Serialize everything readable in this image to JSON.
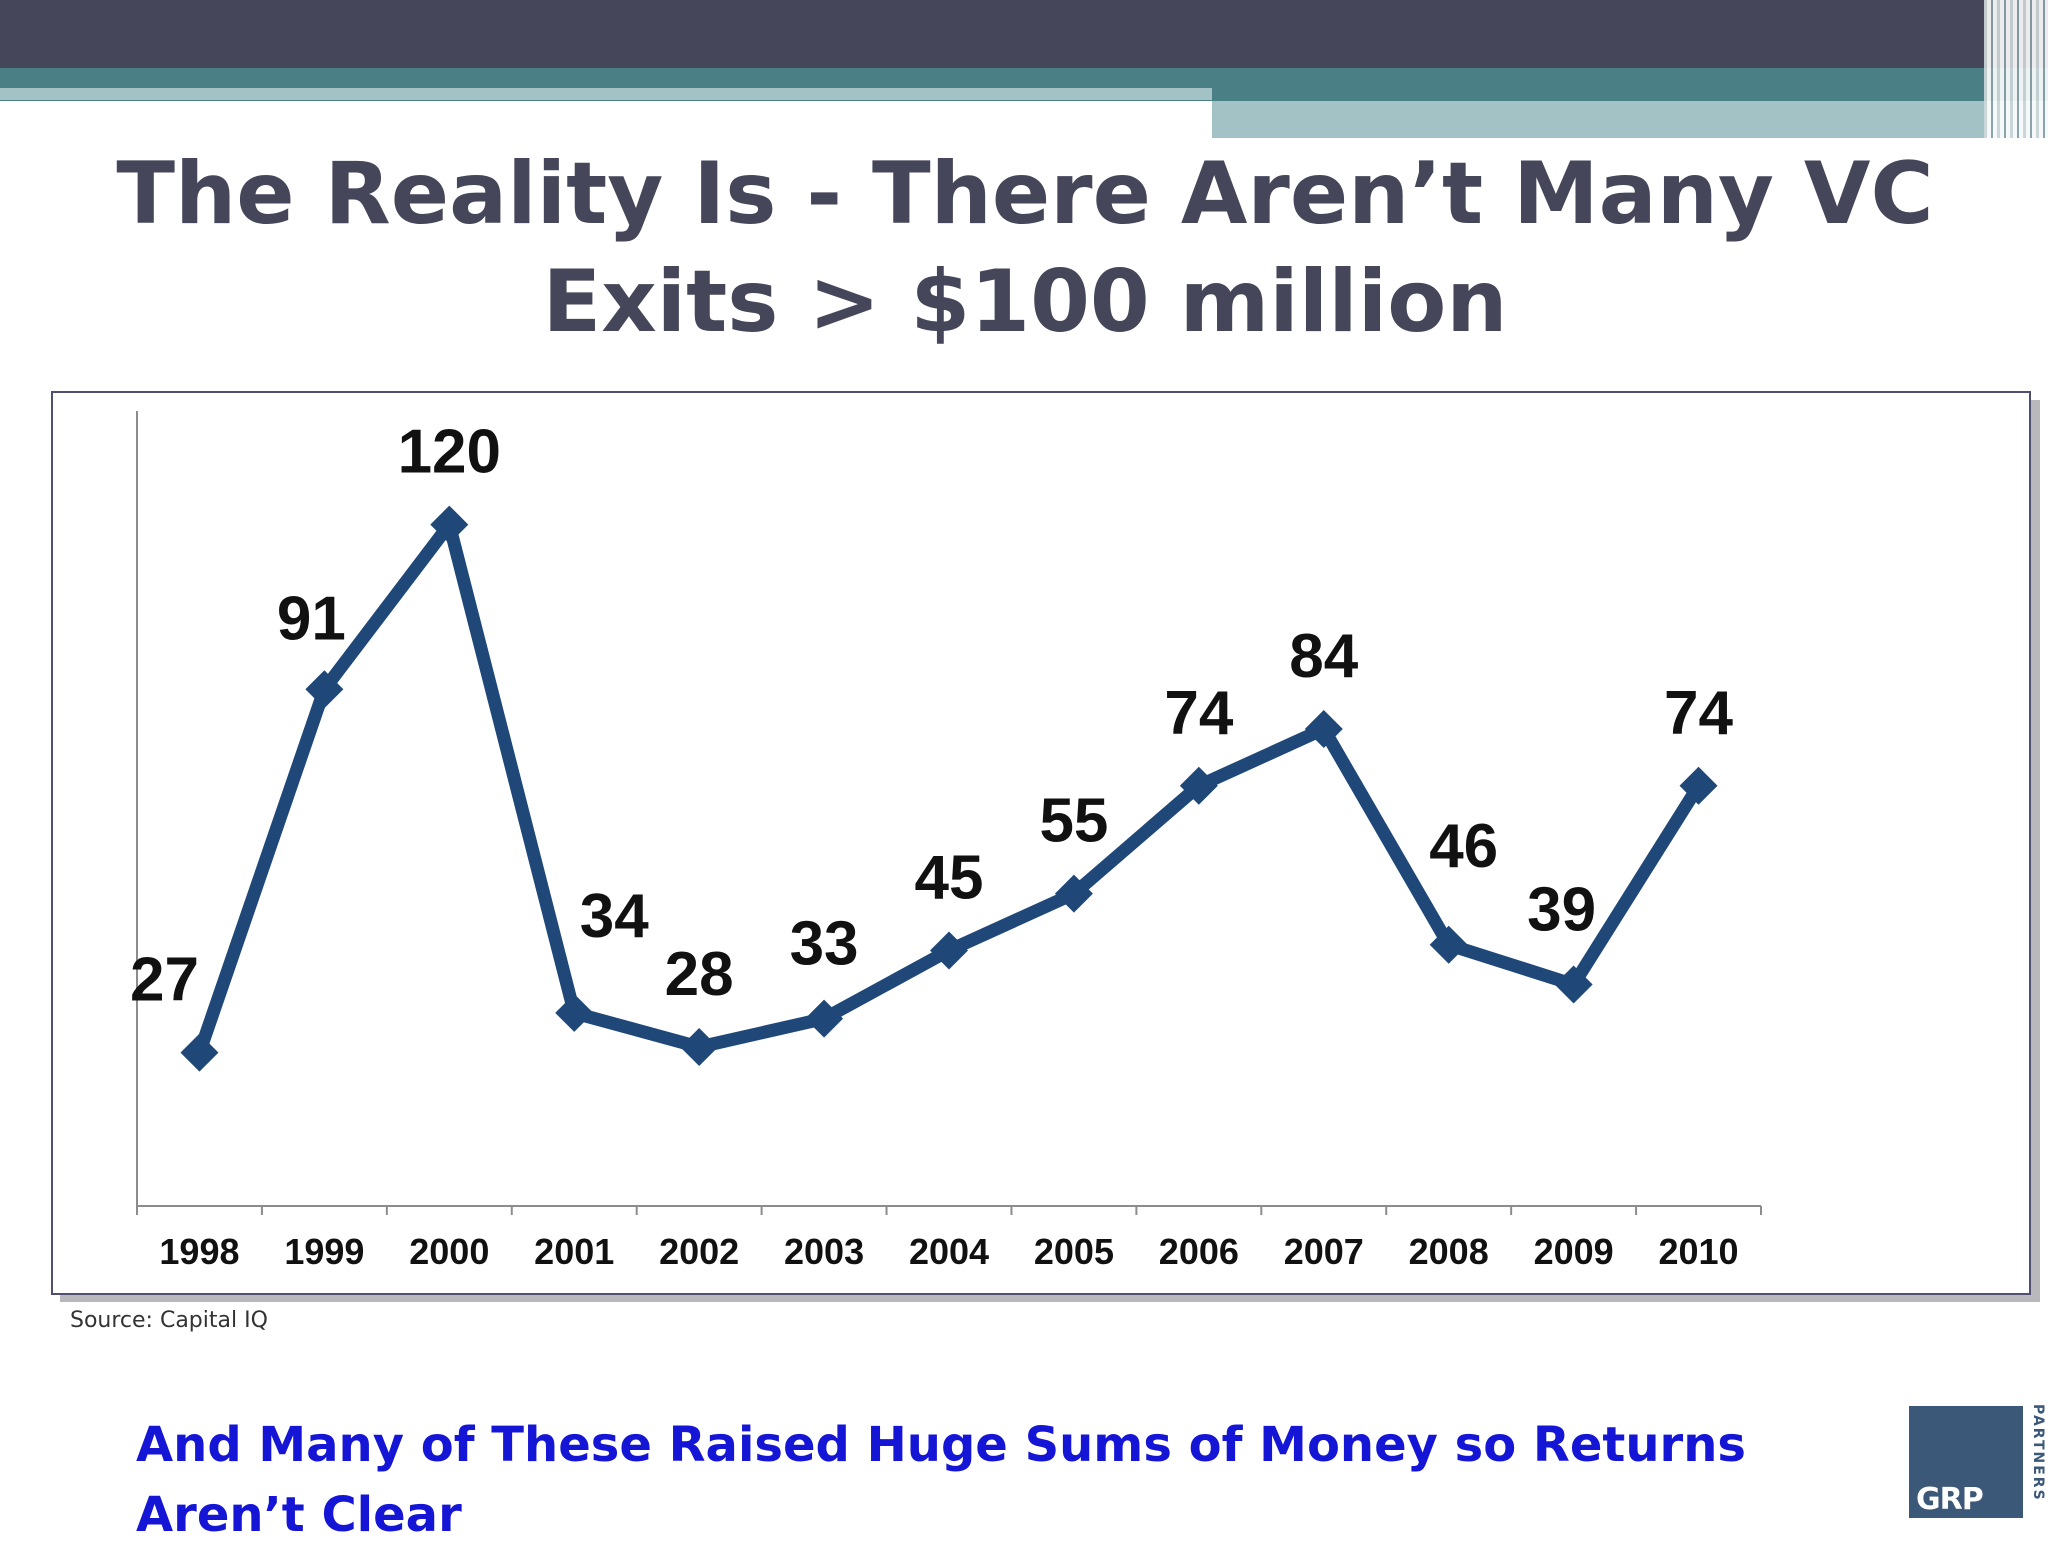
{
  "slide": {
    "title_line1": "The Reality Is - There Aren’t Many VC",
    "title_line2": "Exits > $100 million",
    "source": "Source: Capital IQ",
    "footer": "And Many of These Raised Huge Sums of Money so Returns Aren’t Clear",
    "logo_main": "GRP",
    "logo_side": "PARTNERS"
  },
  "colors": {
    "header_dark": "#45465a",
    "header_teal": "#4a7f86",
    "header_light": "#a3c2c5",
    "series_line": "#1f4878",
    "footer_text": "#1515d6",
    "logo_bg": "#3c5878"
  },
  "chart_data": {
    "type": "line",
    "title": "",
    "xlabel": "",
    "ylabel": "",
    "categories": [
      "1998",
      "1999",
      "2000",
      "2001",
      "2002",
      "2003",
      "2004",
      "2005",
      "2006",
      "2007",
      "2008",
      "2009",
      "2010"
    ],
    "values": [
      27,
      91,
      120,
      34,
      28,
      33,
      45,
      55,
      74,
      84,
      46,
      39,
      74
    ],
    "data_labels": [
      "27",
      "91",
      "120",
      "34",
      "28",
      "33",
      "45",
      "55",
      "74",
      "84",
      "46",
      "39",
      "74"
    ],
    "ylim": [
      0,
      140
    ],
    "grid": false,
    "legend": "none",
    "marker": "diamond"
  }
}
